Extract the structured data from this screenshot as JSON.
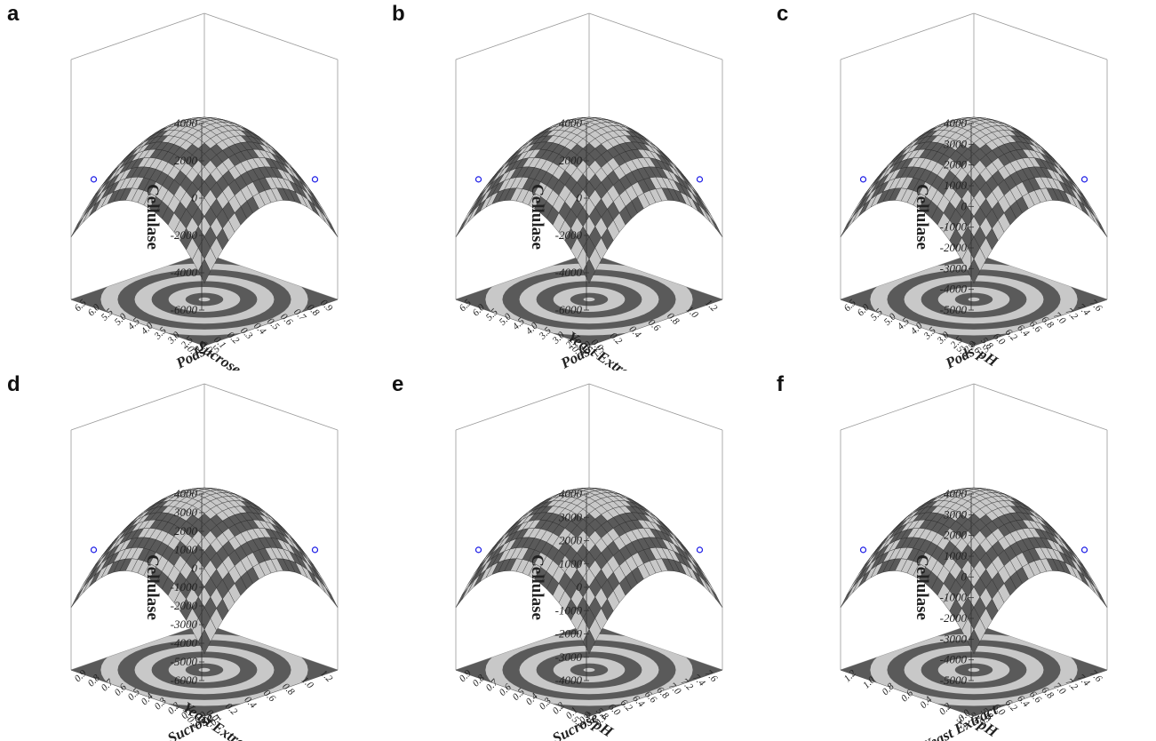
{
  "figure": {
    "panels": [
      {
        "letter": "a",
        "x_label": "Sucrose",
        "y_label": "Pods",
        "z_label": "Cellulase",
        "z_ticks": [
          "4000",
          "2000",
          "0",
          "-2000",
          "-4000",
          "-6000"
        ],
        "x_ticks": [
          "-0.1",
          "0.0",
          "0.1",
          "0.2",
          "0.3",
          "0.4",
          "0.5",
          "0.6",
          "0.7",
          "0.8",
          "0.9"
        ],
        "y_ticks": [
          "1.5",
          "2.0",
          "2.5",
          "3.0",
          "3.5",
          "4.0",
          "4.5",
          "5.0",
          "5.5",
          "6.0",
          "6.5"
        ]
      },
      {
        "letter": "b",
        "x_label": "Yeast Extract",
        "y_label": "Pods",
        "z_label": "Cellulase",
        "z_ticks": [
          "4000",
          "2000",
          "0",
          "-2000",
          "-4000",
          "-6000"
        ],
        "x_ticks": [
          "-0.2",
          "0.0",
          "0.2",
          "0.4",
          "0.6",
          "0.8",
          "1.0",
          "1.2"
        ],
        "y_ticks": [
          "1.5",
          "2.0",
          "2.5",
          "3.0",
          "3.5",
          "4.0",
          "4.5",
          "5.0",
          "5.5",
          "6.0",
          "6.5"
        ]
      },
      {
        "letter": "c",
        "x_label": "pH",
        "y_label": "Pods",
        "z_label": "Cellulase",
        "z_ticks": [
          "4000",
          "3000",
          "2000",
          "1000",
          "0",
          "-1000",
          "-2000",
          "-3000",
          "-4000",
          "-5000"
        ],
        "x_ticks": [
          "5.4",
          "5.6",
          "5.8",
          "6.0",
          "6.2",
          "6.4",
          "6.6",
          "6.8",
          "7.0",
          "7.2",
          "7.4",
          "7.6"
        ],
        "y_ticks": [
          "1.5",
          "2.0",
          "2.5",
          "3.0",
          "3.5",
          "4.0",
          "4.5",
          "5.0",
          "5.5",
          "6.0",
          "6.5"
        ]
      },
      {
        "letter": "d",
        "x_label": "Yeast Extract",
        "y_label": "Sucrose",
        "z_label": "Cellulase",
        "z_ticks": [
          "4000",
          "3000",
          "2000",
          "1000",
          "0",
          "-1000",
          "-2000",
          "-3000",
          "-4000",
          "-5000",
          "-6000"
        ],
        "x_ticks": [
          "-0.2",
          "0.0",
          "0.2",
          "0.4",
          "0.6",
          "0.8",
          "1.0",
          "1.2"
        ],
        "y_ticks": [
          "-0.1",
          "0.0",
          "0.1",
          "0.2",
          "0.3",
          "0.4",
          "0.5",
          "0.6",
          "0.7",
          "0.8",
          "0.9"
        ]
      },
      {
        "letter": "e",
        "x_label": "pH",
        "y_label": "Sucrose",
        "z_label": "Cellulase",
        "z_ticks": [
          "4000",
          "3000",
          "2000",
          "1000",
          "0",
          "-1000",
          "-2000",
          "-3000",
          "-4000"
        ],
        "x_ticks": [
          "5.4",
          "5.6",
          "5.8",
          "6.0",
          "6.2",
          "6.4",
          "6.6",
          "6.8",
          "7.0",
          "7.2",
          "7.4",
          "7.6"
        ],
        "y_ticks": [
          "-0.1",
          "0.0",
          "0.1",
          "0.2",
          "0.3",
          "0.4",
          "0.5",
          "0.6",
          "0.7",
          "0.8",
          "0.9"
        ]
      },
      {
        "letter": "f",
        "x_label": "pH",
        "y_label": "Yeast Extract",
        "z_label": "Cellulase",
        "z_ticks": [
          "4000",
          "3000",
          "2000",
          "1000",
          "0",
          "-1000",
          "-2000",
          "-3000",
          "-4000",
          "-5000"
        ],
        "x_ticks": [
          "5.4",
          "5.6",
          "5.8",
          "6.0",
          "6.2",
          "6.4",
          "6.6",
          "6.8",
          "7.0",
          "7.2",
          "7.4",
          "7.6"
        ],
        "y_ticks": [
          "-0.2",
          "0.0",
          "0.2",
          "0.4",
          "0.6",
          "0.8",
          "1.0",
          "1.2"
        ]
      }
    ]
  },
  "colors": {
    "band_light": "#c8c8c8",
    "band_dark": "#5a5a5a",
    "mesh": "#222222",
    "frame": "#999999",
    "marker": "#1a1ae6"
  },
  "chart_data": [
    {
      "type": "surface",
      "panel": "a",
      "x_var": "Sucrose",
      "y_var": "Pods",
      "z_var": "Cellulase",
      "xlim": [
        -0.1,
        0.9
      ],
      "ylim": [
        1.5,
        6.5
      ],
      "zlim": [
        -6000,
        4000
      ],
      "z_peak": 3500,
      "contour_floor": true
    },
    {
      "type": "surface",
      "panel": "b",
      "x_var": "Yeast Extract",
      "y_var": "Pods",
      "z_var": "Cellulase",
      "xlim": [
        -0.2,
        1.2
      ],
      "ylim": [
        1.5,
        6.5
      ],
      "zlim": [
        -6000,
        4000
      ],
      "z_peak": 3500,
      "contour_floor": true
    },
    {
      "type": "surface",
      "panel": "c",
      "x_var": "pH",
      "y_var": "Pods",
      "z_var": "Cellulase",
      "xlim": [
        5.4,
        7.6
      ],
      "ylim": [
        1.5,
        6.5
      ],
      "zlim": [
        -5000,
        4000
      ],
      "z_peak": 3500,
      "contour_floor": true
    },
    {
      "type": "surface",
      "panel": "d",
      "x_var": "Yeast Extract",
      "y_var": "Sucrose",
      "z_var": "Cellulase",
      "xlim": [
        -0.2,
        1.2
      ],
      "ylim": [
        -0.1,
        0.9
      ],
      "zlim": [
        -6000,
        4000
      ],
      "z_peak": 3500,
      "contour_floor": true
    },
    {
      "type": "surface",
      "panel": "e",
      "x_var": "pH",
      "y_var": "Sucrose",
      "z_var": "Cellulase",
      "xlim": [
        5.4,
        7.6
      ],
      "ylim": [
        -0.1,
        0.9
      ],
      "zlim": [
        -4000,
        4000
      ],
      "z_peak": 3500,
      "contour_floor": true
    },
    {
      "type": "surface",
      "panel": "f",
      "x_var": "pH",
      "y_var": "Yeast Extract",
      "z_var": "Cellulase",
      "xlim": [
        5.4,
        7.6
      ],
      "ylim": [
        -0.2,
        1.2
      ],
      "zlim": [
        -5000,
        4000
      ],
      "z_peak": 3500,
      "contour_floor": true
    }
  ]
}
